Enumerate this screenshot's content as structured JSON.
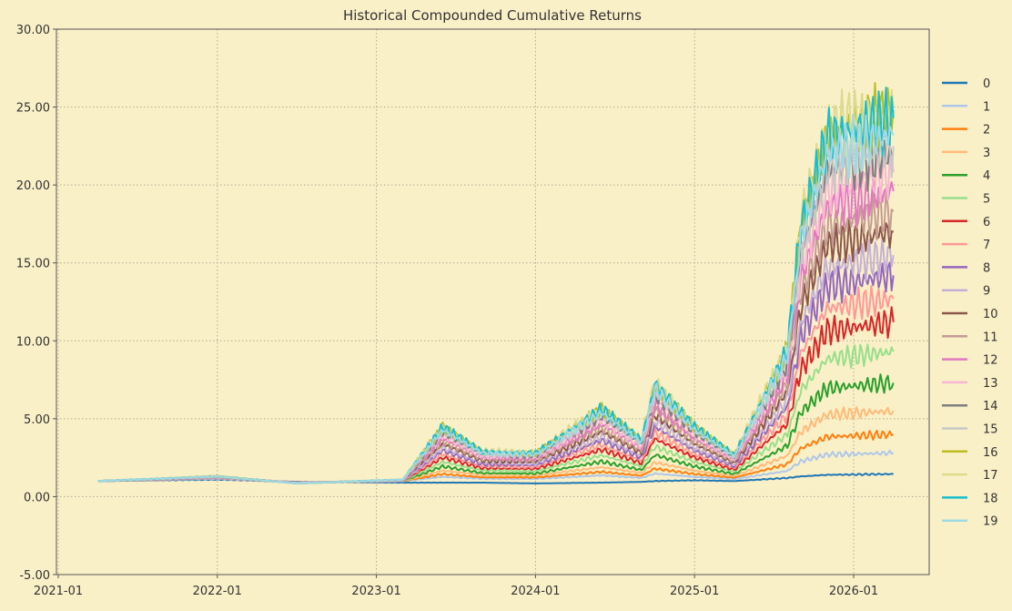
{
  "chart_data": {
    "type": "line",
    "title": "Historical Compounded Cumulative Returns",
    "xlabel": "",
    "ylabel": "",
    "ylim": [
      -5,
      30
    ],
    "yticks": [
      "-5.00",
      "0.00",
      "5.00",
      "10.00",
      "15.00",
      "20.00",
      "25.00",
      "30.00"
    ],
    "xticks": [
      "2021-01",
      "2022-01",
      "2023-01",
      "2024-01",
      "2025-01",
      "2026-01"
    ],
    "grid": true,
    "legend_position": "right",
    "x": [
      "2021-04",
      "2022-01",
      "2022-07",
      "2023-03",
      "2023-06",
      "2023-09",
      "2024-01",
      "2024-06",
      "2024-09",
      "2024-10",
      "2025-01",
      "2025-04",
      "2025-08",
      "2025-09",
      "2025-11",
      "2026-04"
    ],
    "series": [
      {
        "name": "0",
        "color": "#1f77b4",
        "values": [
          1.0,
          1.1,
          0.95,
          0.9,
          0.9,
          0.9,
          0.85,
          0.9,
          0.95,
          1.0,
          1.05,
          1.0,
          1.2,
          1.3,
          1.4,
          1.45
        ]
      },
      {
        "name": "1",
        "color": "#aec7e8",
        "values": [
          1.0,
          1.15,
          0.9,
          1.0,
          1.27,
          1.15,
          1.14,
          1.36,
          1.2,
          1.48,
          1.27,
          1.13,
          1.65,
          2.26,
          2.7,
          2.8
        ]
      },
      {
        "name": "2",
        "color": "#ff7f0e",
        "values": [
          1.0,
          1.2,
          0.9,
          1.0,
          1.45,
          1.24,
          1.23,
          1.59,
          1.34,
          1.8,
          1.45,
          1.22,
          2.08,
          3.09,
          3.84,
          4.0
        ]
      },
      {
        "name": "3",
        "color": "#ffbb78",
        "values": [
          1.0,
          1.2,
          0.9,
          1.0,
          1.67,
          1.37,
          1.35,
          1.89,
          1.51,
          2.2,
          1.67,
          1.32,
          2.62,
          4.15,
          5.26,
          5.5
        ]
      },
      {
        "name": "4",
        "color": "#2ca02c",
        "values": [
          1.0,
          1.2,
          0.9,
          1.0,
          1.94,
          1.51,
          1.48,
          2.25,
          1.71,
          2.68,
          1.94,
          1.45,
          3.27,
          5.4,
          6.96,
          7.3
        ]
      },
      {
        "name": "5",
        "color": "#98df8a",
        "values": [
          1.0,
          1.2,
          0.9,
          1.0,
          2.23,
          1.67,
          1.64,
          2.65,
          1.94,
          3.21,
          2.23,
          1.6,
          3.99,
          6.8,
          8.85,
          9.3
        ]
      },
      {
        "name": "6",
        "color": "#d62728",
        "values": [
          1.0,
          1.2,
          0.9,
          1.0,
          2.51,
          1.83,
          1.78,
          3.02,
          2.15,
          3.71,
          2.51,
          1.73,
          4.67,
          8.11,
          10.64,
          11.2
        ]
      },
      {
        "name": "7",
        "color": "#ff9896",
        "values": [
          1.0,
          1.2,
          0.9,
          1.0,
          2.74,
          1.95,
          1.9,
          3.32,
          2.32,
          4.11,
          2.74,
          1.84,
          5.22,
          9.17,
          12.07,
          12.7
        ]
      },
      {
        "name": "8",
        "color": "#9467bd",
        "values": [
          1.0,
          1.2,
          0.9,
          1.0,
          2.96,
          2.07,
          2.01,
          3.62,
          2.49,
          4.51,
          2.96,
          1.95,
          5.76,
          10.22,
          13.5,
          14.2
        ]
      },
      {
        "name": "9",
        "color": "#c5b0d5",
        "values": [
          1.0,
          1.2,
          0.9,
          1.0,
          3.15,
          2.18,
          2.11,
          3.87,
          2.63,
          4.85,
          3.15,
          2.04,
          6.22,
          11.12,
          14.71,
          15.5
        ]
      },
      {
        "name": "10",
        "color": "#8c564b",
        "values": [
          1.0,
          1.25,
          0.9,
          1.05,
          3.38,
          2.3,
          2.23,
          4.17,
          2.8,
          5.25,
          3.38,
          2.15,
          6.77,
          12.18,
          16.14,
          17.0
        ]
      },
      {
        "name": "11",
        "color": "#c49c94",
        "values": [
          1.0,
          1.25,
          0.9,
          1.05,
          3.57,
          2.4,
          2.32,
          4.43,
          2.95,
          5.6,
          3.57,
          2.25,
          7.23,
          13.07,
          17.36,
          18.3
        ]
      },
      {
        "name": "12",
        "color": "#e377c2",
        "values": [
          1.0,
          1.25,
          0.9,
          1.05,
          3.77,
          2.51,
          2.42,
          4.69,
          3.1,
          5.94,
          3.77,
          2.34,
          7.7,
          13.99,
          18.6,
          19.6
        ]
      },
      {
        "name": "13",
        "color": "#f7b6d2",
        "values": [
          1.0,
          1.25,
          0.9,
          1.05,
          3.94,
          2.61,
          2.52,
          4.92,
          3.23,
          6.26,
          3.94,
          2.43,
          8.14,
          14.83,
          19.73,
          20.8
        ]
      },
      {
        "name": "14",
        "color": "#7f7f7f",
        "values": [
          1.0,
          1.3,
          0.85,
          1.05,
          4.12,
          2.7,
          2.61,
          5.16,
          3.37,
          6.58,
          4.12,
          2.51,
          8.57,
          15.66,
          20.87,
          22.0
        ]
      },
      {
        "name": "15",
        "color": "#c7c7c7",
        "values": [
          1.0,
          1.3,
          0.85,
          1.05,
          4.19,
          2.74,
          2.65,
          5.26,
          3.42,
          6.71,
          4.19,
          2.55,
          8.74,
          16.0,
          21.33,
          22.5
        ]
      },
      {
        "name": "16",
        "color": "#bcbd22",
        "values": [
          1.0,
          1.3,
          0.85,
          1.1,
          4.47,
          2.89,
          2.79,
          5.62,
          3.63,
          7.2,
          4.47,
          2.68,
          9.4,
          17.28,
          23.05,
          24.8
        ]
      },
      {
        "name": "17",
        "color": "#dbdb8d",
        "values": [
          1.0,
          1.3,
          0.85,
          1.1,
          4.56,
          2.94,
          2.84,
          5.75,
          3.7,
          7.37,
          4.56,
          2.73,
          9.64,
          17.74,
          23.68,
          25.0
        ]
      },
      {
        "name": "18",
        "color": "#17becf",
        "values": [
          1.0,
          1.3,
          0.85,
          1.1,
          4.47,
          2.89,
          2.79,
          5.62,
          3.63,
          7.2,
          4.47,
          2.68,
          9.4,
          17.28,
          23.05,
          24.3
        ]
      },
      {
        "name": "19",
        "color": "#9edae5",
        "values": [
          1.0,
          1.3,
          0.85,
          1.1,
          4.3,
          2.8,
          2.7,
          5.4,
          3.5,
          6.9,
          4.3,
          2.6,
          9.0,
          16.5,
          22.0,
          23.2
        ]
      }
    ]
  }
}
